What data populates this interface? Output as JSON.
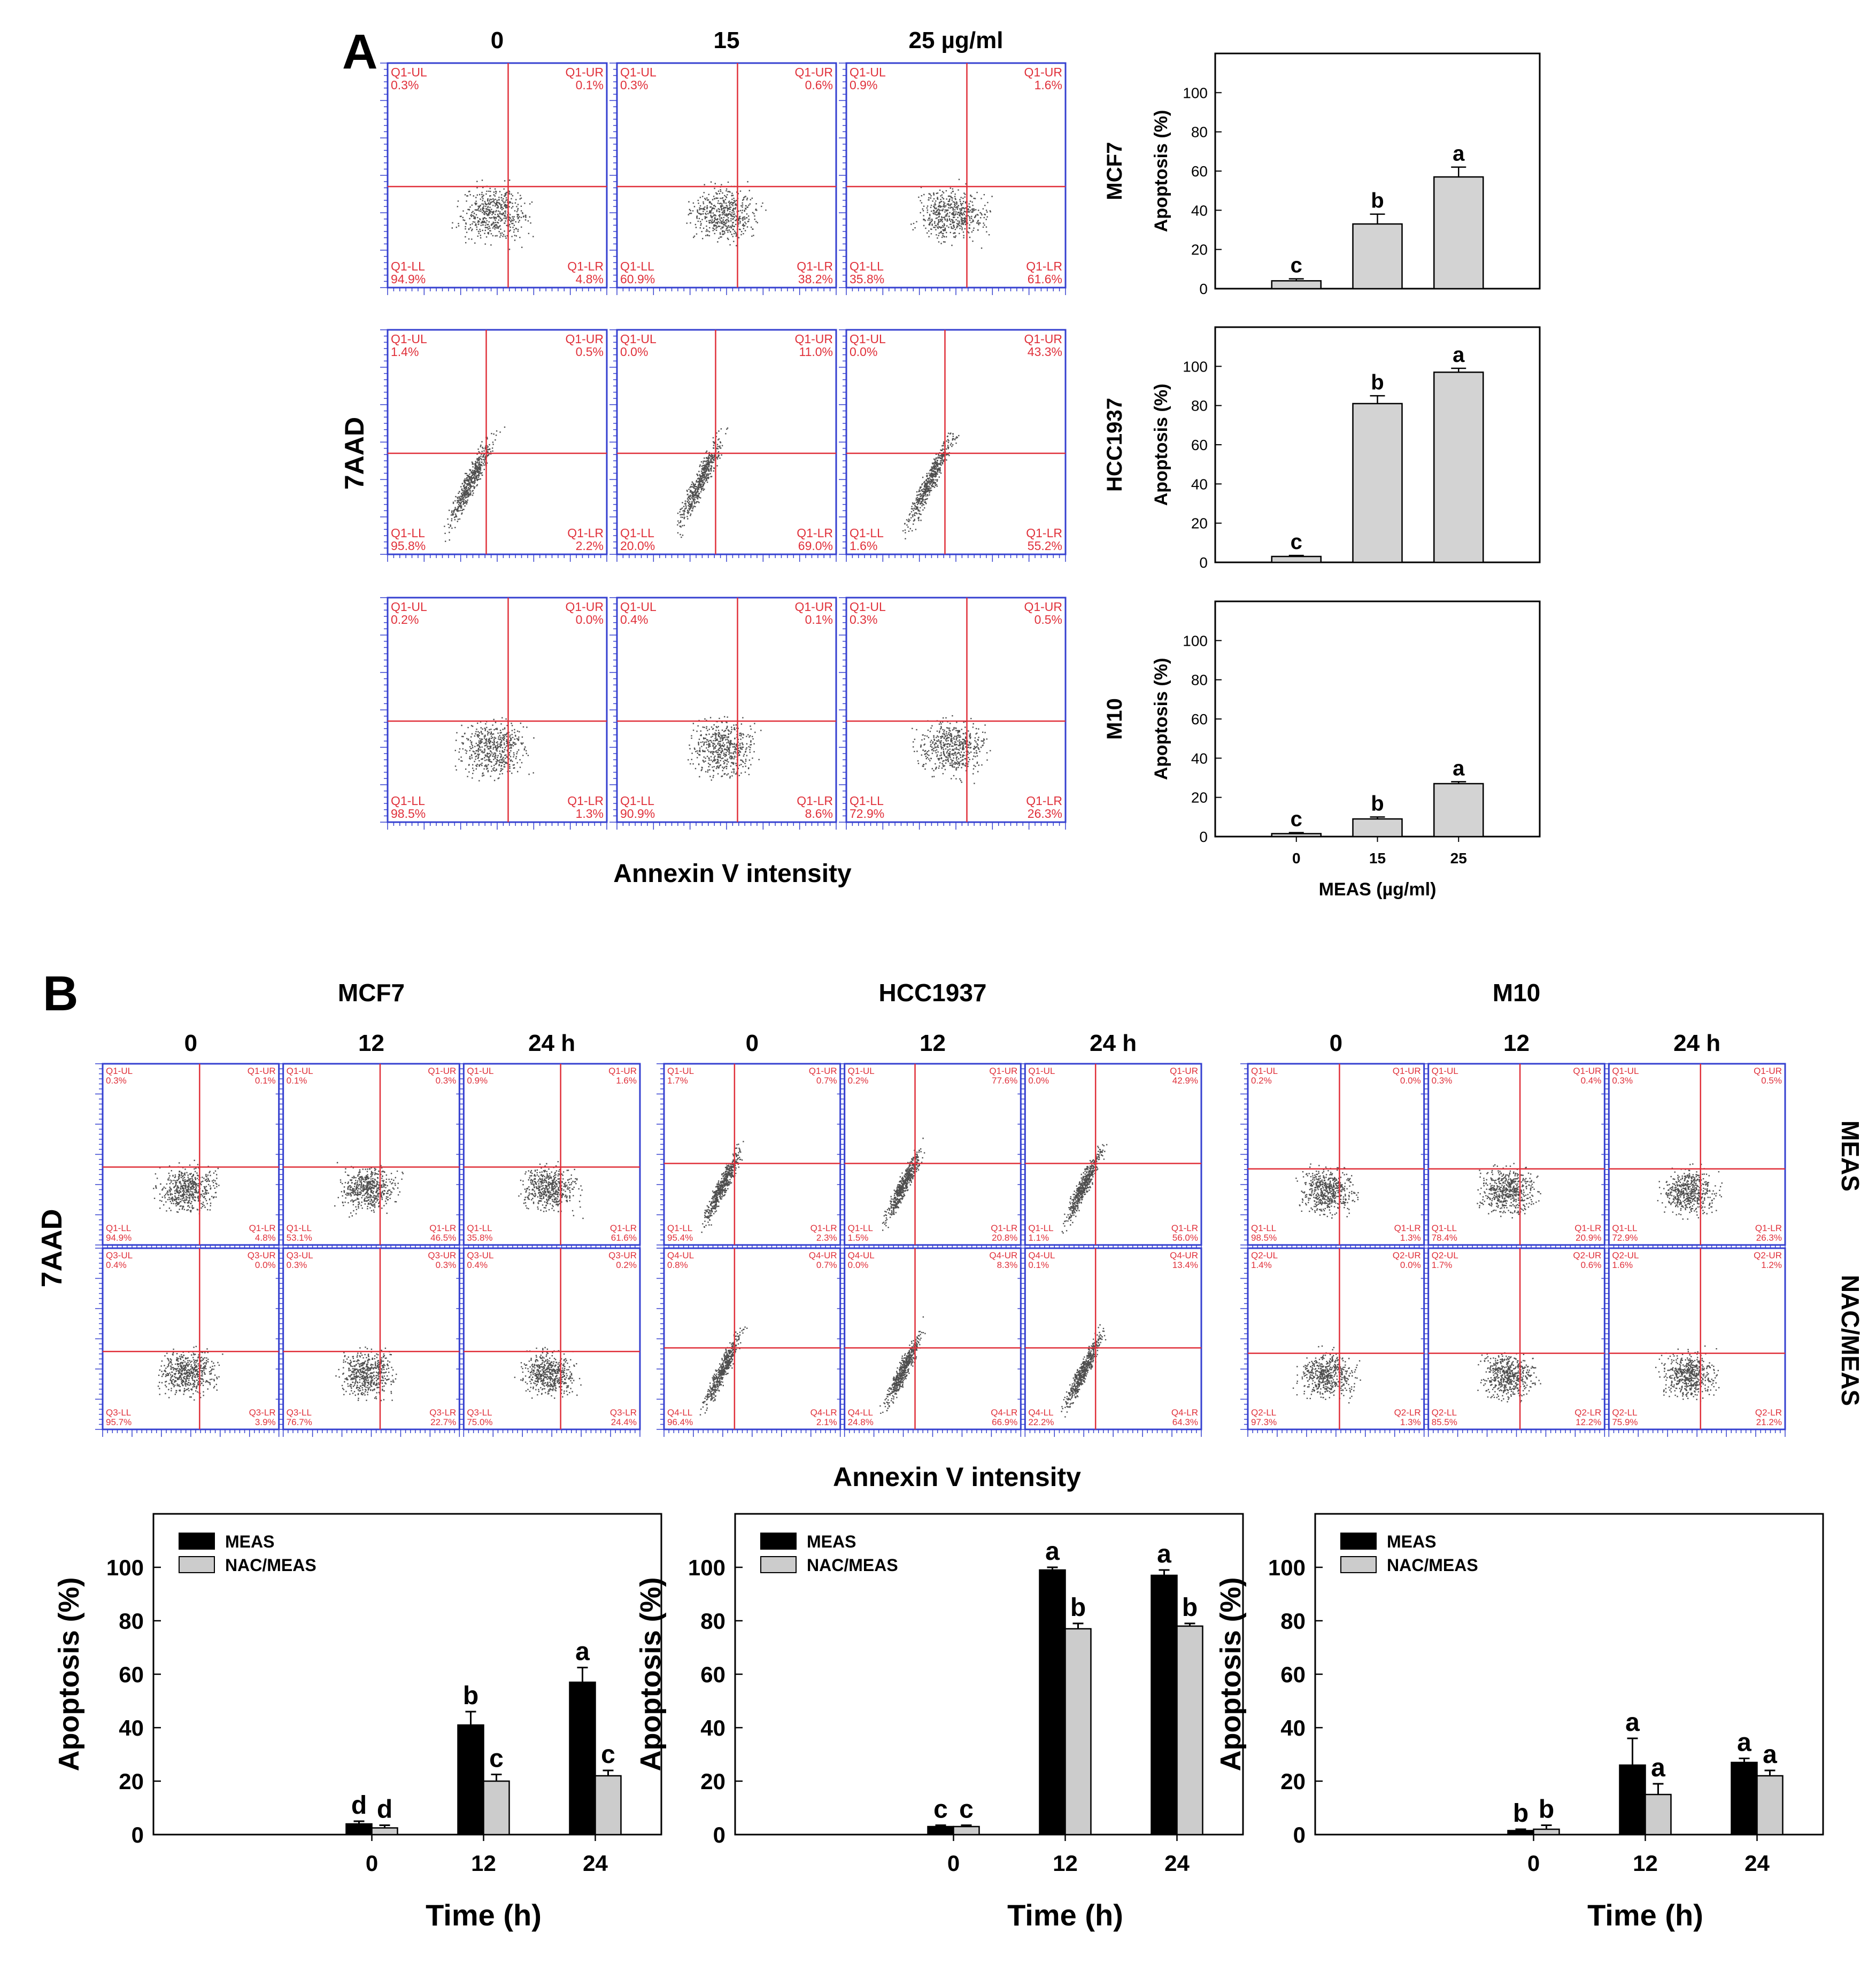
{
  "panel_labels": {
    "a": "A",
    "b": "B"
  },
  "panel_a": {
    "flow": {
      "col_headers": [
        "0",
        "15",
        "25 µg/ml"
      ],
      "y_label": "7AAD",
      "x_label": "Annexin V intensity",
      "rows": [
        {
          "cell_line": "MCF7",
          "quad_prefix": [
            "Q1",
            "Q1",
            "Q1"
          ],
          "plots": [
            {
              "UL": "0.3%",
              "UR": "0.1%",
              "LL": "94.9%",
              "LR": "4.8%"
            },
            {
              "UL": "0.3%",
              "UR": "0.6%",
              "LL": "60.9%",
              "LR": "38.2%"
            },
            {
              "UL": "0.9%",
              "UR": "1.6%",
              "LL": "35.8%",
              "LR": "61.6%"
            }
          ]
        },
        {
          "cell_line": "HCC1937",
          "quad_prefix": [
            "Q1",
            "Q1",
            "Q1"
          ],
          "plots": [
            {
              "UL": "1.4%",
              "UR": "0.5%",
              "LL": "95.8%",
              "LR": "2.2%"
            },
            {
              "UL": "0.0%",
              "UR": "11.0%",
              "LL": "20.0%",
              "LR": "69.0%"
            },
            {
              "UL": "0.0%",
              "UR": "43.3%",
              "LL": "1.6%",
              "LR": "55.2%"
            }
          ]
        },
        {
          "cell_line": "M10",
          "quad_prefix": [
            "Q1",
            "Q1",
            "Q1"
          ],
          "plots": [
            {
              "UL": "0.2%",
              "UR": "0.0%",
              "LL": "98.5%",
              "LR": "1.3%"
            },
            {
              "UL": "0.4%",
              "UR": "0.1%",
              "LL": "90.9%",
              "LR": "8.6%"
            },
            {
              "UL": "0.3%",
              "UR": "0.5%",
              "LL": "72.9%",
              "LR": "26.3%"
            }
          ]
        }
      ]
    }
  },
  "panel_b": {
    "flow": {
      "y_label": "7AAD",
      "x_label": "Annexin V intensity",
      "row_labels": [
        "MEAS",
        "NAC/MEAS"
      ],
      "col_headers": [
        "0",
        "12",
        "24 h"
      ],
      "groups": [
        {
          "title": "MCF7",
          "rows": [
            {
              "prefix": "Q1",
              "plots": [
                {
                  "UL": "0.3%",
                  "UR": "0.1%",
                  "LL": "94.9%",
                  "LR": "4.8%"
                },
                {
                  "UL": "0.1%",
                  "UR": "0.3%",
                  "LL": "53.1%",
                  "LR": "46.5%"
                },
                {
                  "UL": "0.9%",
                  "UR": "1.6%",
                  "LL": "35.8%",
                  "LR": "61.6%"
                }
              ]
            },
            {
              "prefix": "Q3",
              "plots": [
                {
                  "UL": "0.4%",
                  "UR": "0.0%",
                  "LL": "95.7%",
                  "LR": "3.9%"
                },
                {
                  "UL": "0.3%",
                  "UR": "0.3%",
                  "LL": "76.7%",
                  "LR": "22.7%"
                },
                {
                  "UL": "0.4%",
                  "UR": "0.2%",
                  "LL": "75.0%",
                  "LR": "24.4%"
                }
              ]
            }
          ]
        },
        {
          "title": "HCC1937",
          "rows": [
            {
              "prefix": "Q1",
              "plots": [
                {
                  "UL": "1.7%",
                  "UR": "0.7%",
                  "LL": "95.4%",
                  "LR": "2.3%"
                },
                {
                  "UL": "0.2%",
                  "UR": "77.6%",
                  "LL": "1.5%",
                  "LR": "20.8%"
                },
                {
                  "UL": "0.0%",
                  "UR": "42.9%",
                  "LL": "1.1%",
                  "LR": "56.0%"
                }
              ]
            },
            {
              "prefix": "Q4",
              "plots": [
                {
                  "UL": "0.8%",
                  "UR": "0.7%",
                  "LL": "96.4%",
                  "LR": "2.1%"
                },
                {
                  "UL": "0.0%",
                  "UR": "8.3%",
                  "LL": "24.8%",
                  "LR": "66.9%"
                },
                {
                  "UL": "0.1%",
                  "UR": "13.4%",
                  "LL": "22.2%",
                  "LR": "64.3%"
                }
              ]
            }
          ]
        },
        {
          "title": "M10",
          "rows": [
            {
              "prefix": "Q1",
              "plots": [
                {
                  "UL": "0.2%",
                  "UR": "0.0%",
                  "LL": "98.5%",
                  "LR": "1.3%"
                },
                {
                  "UL": "0.3%",
                  "UR": "0.4%",
                  "LL": "78.4%",
                  "LR": "20.9%"
                },
                {
                  "UL": "0.3%",
                  "UR": "0.5%",
                  "LL": "72.9%",
                  "LR": "26.3%"
                }
              ]
            },
            {
              "prefix": "Q2",
              "plots": [
                {
                  "UL": "1.4%",
                  "UR": "0.0%",
                  "LL": "97.3%",
                  "LR": "1.3%"
                },
                {
                  "UL": "1.7%",
                  "UR": "0.6%",
                  "LL": "85.5%",
                  "LR": "12.2%"
                },
                {
                  "UL": "1.6%",
                  "UR": "1.2%",
                  "LL": "75.9%",
                  "LR": "21.2%"
                }
              ]
            }
          ]
        }
      ]
    }
  },
  "colors": {
    "meas": "#000000",
    "nac_meas": "#cccccc",
    "a_bar": "#d3d3d3",
    "gate": "#e0303a",
    "frame": "#3540d0",
    "quad_text": "#e0303a"
  },
  "chart_data": [
    {
      "type": "bar",
      "panel": "A",
      "cell_line": "MCF7",
      "ylabel": "Apoptosis (%)",
      "xlabel": "",
      "categories": [
        "0",
        "15",
        "25"
      ],
      "values": [
        4,
        33,
        57
      ],
      "errors": [
        1,
        5,
        5
      ],
      "letters": [
        "c",
        "b",
        "a"
      ],
      "ylim": [
        0,
        120
      ],
      "yticks": [
        "0",
        "20",
        "40",
        "60",
        "80",
        "100"
      ]
    },
    {
      "type": "bar",
      "panel": "A",
      "cell_line": "HCC1937",
      "ylabel": "Apoptosis (%)",
      "xlabel": "",
      "categories": [
        "0",
        "15",
        "25"
      ],
      "values": [
        3,
        81,
        97
      ],
      "errors": [
        0.5,
        4,
        2
      ],
      "letters": [
        "c",
        "b",
        "a"
      ],
      "ylim": [
        0,
        120
      ],
      "yticks": [
        "0",
        "20",
        "40",
        "60",
        "80",
        "100"
      ]
    },
    {
      "type": "bar",
      "panel": "A",
      "cell_line": "M10",
      "ylabel": "Apoptosis (%)",
      "xlabel": "MEAS (µg/ml)",
      "categories": [
        "0",
        "15",
        "25"
      ],
      "values": [
        1.5,
        9,
        27
      ],
      "errors": [
        0.5,
        1,
        1
      ],
      "letters": [
        "c",
        "b",
        "a"
      ],
      "ylim": [
        0,
        120
      ],
      "yticks": [
        "0",
        "20",
        "40",
        "60",
        "80",
        "100"
      ]
    },
    {
      "type": "bar",
      "panel": "B",
      "cell_line": "MCF7",
      "ylabel": "Apoptosis (%)",
      "xlabel": "Time (h)",
      "categories": [
        "0",
        "12",
        "24"
      ],
      "series": [
        {
          "name": "MEAS",
          "values": [
            4,
            41,
            57
          ],
          "errors": [
            1,
            5,
            5.5
          ],
          "letters": [
            "d",
            "b",
            "a"
          ]
        },
        {
          "name": "NAC/MEAS",
          "values": [
            2.5,
            20,
            22
          ],
          "errors": [
            1,
            2.5,
            2
          ],
          "letters": [
            "d",
            "c",
            "c"
          ]
        }
      ],
      "ylim": [
        0,
        120
      ],
      "yticks": [
        "0",
        "20",
        "40",
        "60",
        "80",
        "100"
      ]
    },
    {
      "type": "bar",
      "panel": "B",
      "cell_line": "HCC1937",
      "ylabel": "Apoptosis (%)",
      "xlabel": "Time (h)",
      "categories": [
        "0",
        "12",
        "24"
      ],
      "series": [
        {
          "name": "MEAS",
          "values": [
            3,
            99,
            97
          ],
          "errors": [
            0.5,
            1,
            2
          ],
          "letters": [
            "c",
            "a",
            "a"
          ]
        },
        {
          "name": "NAC/MEAS",
          "values": [
            3,
            77,
            78
          ],
          "errors": [
            0.5,
            2,
            1
          ],
          "letters": [
            "c",
            "b",
            "b"
          ]
        }
      ],
      "ylim": [
        0,
        120
      ],
      "yticks": [
        "0",
        "20",
        "40",
        "60",
        "80",
        "100"
      ]
    },
    {
      "type": "bar",
      "panel": "B",
      "cell_line": "M10",
      "ylabel": "Apoptosis (%)",
      "xlabel": "Time (h)",
      "categories": [
        "0",
        "12",
        "24"
      ],
      "series": [
        {
          "name": "MEAS",
          "values": [
            1.5,
            26,
            27
          ],
          "errors": [
            0.5,
            10,
            1.5
          ],
          "letters": [
            "b",
            "a",
            "a"
          ]
        },
        {
          "name": "NAC/MEAS",
          "values": [
            2,
            15,
            22
          ],
          "errors": [
            1.5,
            4,
            2
          ],
          "letters": [
            "b",
            "a",
            "a"
          ]
        }
      ],
      "ylim": [
        0,
        120
      ],
      "yticks": [
        "0",
        "20",
        "40",
        "60",
        "80",
        "100"
      ]
    }
  ]
}
